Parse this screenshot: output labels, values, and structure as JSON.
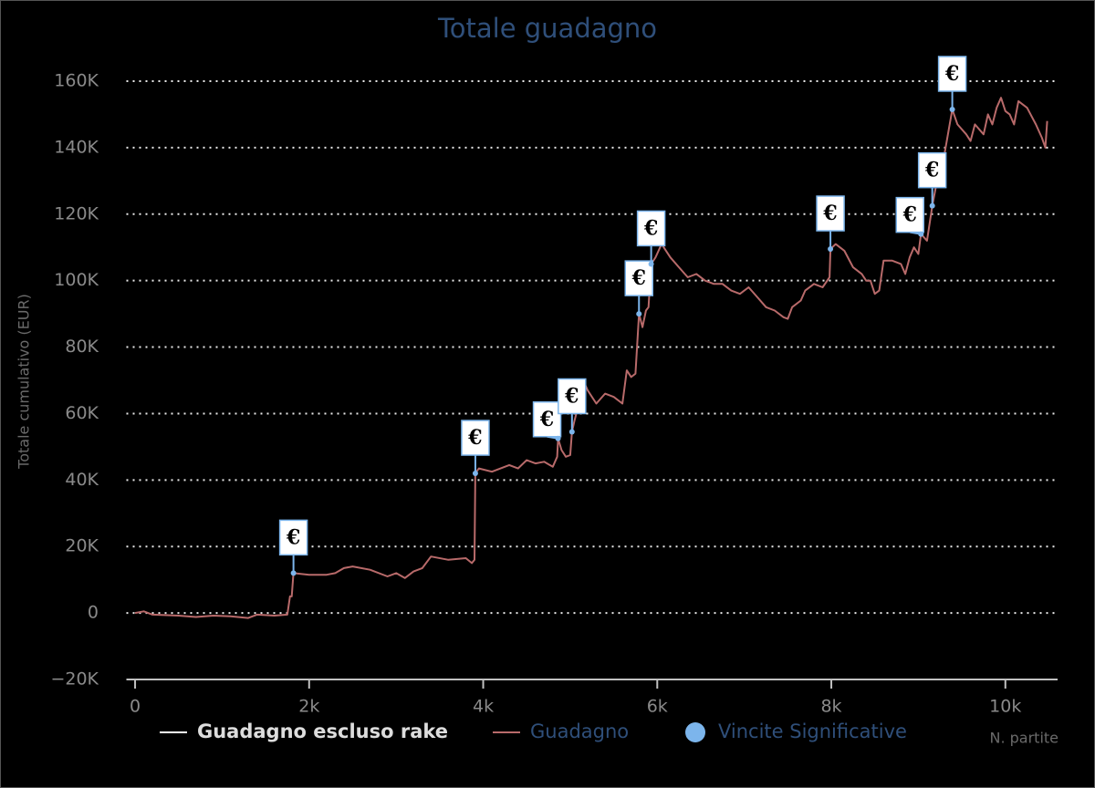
{
  "chart_data": {
    "type": "line",
    "title": "Totale guadagno",
    "y_label": "Totale cumulativo (EUR)",
    "x_label": "N. partite",
    "xlim": [
      -100,
      10600
    ],
    "ylim": [
      -20000,
      160000
    ],
    "xticks": [
      0,
      {
        "value": 2000,
        "label": "2k"
      },
      {
        "value": 4000,
        "label": "4k"
      },
      {
        "value": 6000,
        "label": "6k"
      },
      {
        "value": 8000,
        "label": "8k"
      },
      {
        "value": 10000,
        "label": "10k"
      }
    ],
    "yticks": [
      {
        "value": -20000,
        "label": "−20K"
      },
      0,
      {
        "value": 20000,
        "label": "20K"
      },
      {
        "value": 40000,
        "label": "40K"
      },
      {
        "value": 60000,
        "label": "60K"
      },
      {
        "value": 80000,
        "label": "80K"
      },
      {
        "value": 100000,
        "label": "100K"
      },
      {
        "value": 120000,
        "label": "120K"
      },
      {
        "value": 140000,
        "label": "140K"
      },
      {
        "value": 160000,
        "label": "160K"
      }
    ],
    "grid": true,
    "flag_label": "€",
    "series": [
      {
        "name": "Guadagno escluso rake",
        "type": "line",
        "color": "#ffffff",
        "x": [],
        "values": []
      },
      {
        "name": "Guadagno",
        "type": "line",
        "color": "#b86a6a",
        "x": [
          0,
          100,
          200,
          500,
          700,
          900,
          1100,
          1300,
          1400,
          1600,
          1750,
          1780,
          1800,
          1820,
          2000,
          2200,
          2300,
          2400,
          2500,
          2700,
          2900,
          3000,
          3100,
          3200,
          3300,
          3400,
          3600,
          3800,
          3870,
          3900,
          3910,
          3950,
          4100,
          4200,
          4300,
          4400,
          4500,
          4600,
          4700,
          4800,
          4850,
          4860,
          4900,
          4950,
          5000,
          5020,
          5050,
          5100,
          5150,
          5200,
          5300,
          5400,
          5500,
          5600,
          5650,
          5700,
          5750,
          5790,
          5830,
          5870,
          5900,
          5930,
          5980,
          6050,
          6150,
          6250,
          6350,
          6450,
          6550,
          6650,
          6750,
          6850,
          6950,
          7050,
          7150,
          7250,
          7350,
          7450,
          7500,
          7550,
          7650,
          7700,
          7800,
          7900,
          7980,
          7990,
          8050,
          8150,
          8250,
          8350,
          8400,
          8450,
          8500,
          8550,
          8600,
          8700,
          8800,
          8850,
          8900,
          8950,
          9000,
          9030,
          9100,
          9160,
          9200,
          9280,
          9300,
          9390,
          9450,
          9550,
          9600,
          9650,
          9750,
          9800,
          9850,
          9900,
          9950,
          10000,
          10050,
          10100,
          10150,
          10250,
          10350,
          10420,
          10460,
          10480
        ],
        "values": [
          0,
          500,
          -500,
          -800,
          -1200,
          -800,
          -1000,
          -1500,
          -500,
          -800,
          -500,
          5000,
          5000,
          12000,
          11500,
          11500,
          12000,
          13500,
          14000,
          13000,
          11000,
          12000,
          10500,
          12500,
          13500,
          17000,
          16000,
          16500,
          15000,
          16000,
          42000,
          43500,
          42500,
          43500,
          44500,
          43500,
          46000,
          45000,
          45500,
          44000,
          47000,
          52500,
          49000,
          47000,
          47500,
          54500,
          58000,
          63000,
          70000,
          67000,
          63000,
          66000,
          65000,
          63000,
          73000,
          71000,
          72000,
          90000,
          86000,
          91000,
          92000,
          105000,
          107000,
          111000,
          107000,
          104000,
          101000,
          102000,
          100000,
          99000,
          99000,
          97000,
          96000,
          98000,
          95000,
          92000,
          91000,
          89000,
          88500,
          92000,
          94000,
          97000,
          99000,
          98000,
          101000,
          109500,
          111000,
          109000,
          104000,
          102000,
          100000,
          100000,
          96000,
          97000,
          106000,
          106000,
          105000,
          102000,
          107000,
          110000,
          108000,
          114000,
          112000,
          122500,
          128000,
          134000,
          138000,
          151500,
          147000,
          144000,
          142000,
          147000,
          144000,
          150000,
          147000,
          152000,
          155000,
          151000,
          150000,
          147000,
          154000,
          152000,
          147000,
          143000,
          140000,
          148000
        ]
      },
      {
        "name": "Vincite Significative",
        "type": "scatter",
        "color": "#7cb5ec",
        "x": [
          1820,
          3910,
          4860,
          5020,
          5790,
          5930,
          7990,
          9030,
          9160,
          9390
        ],
        "values": [
          12000,
          42000,
          52500,
          54500,
          90000,
          105000,
          109500,
          114000,
          122500,
          151500
        ]
      }
    ]
  }
}
